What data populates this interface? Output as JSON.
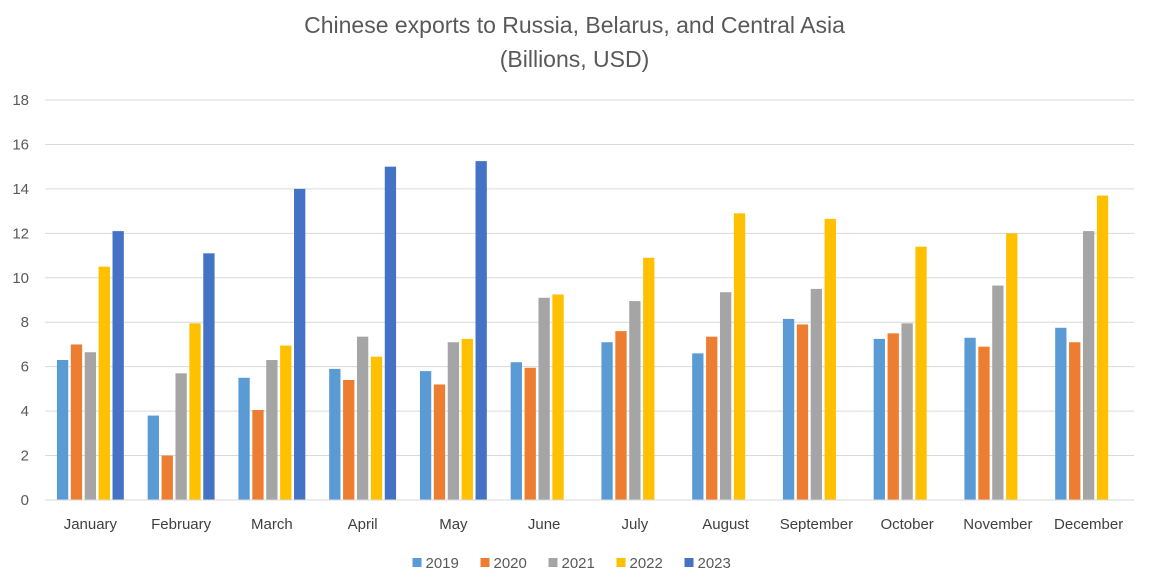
{
  "chart_data": {
    "type": "bar",
    "title": "Chinese exports to Russia, Belarus, and Central Asia",
    "subtitle": "(Billions, USD)",
    "xlabel": "",
    "ylabel": "",
    "ylim": [
      0,
      18
    ],
    "yticks": [
      0,
      2,
      4,
      6,
      8,
      10,
      12,
      14,
      16,
      18
    ],
    "grid": true,
    "legend_position": "bottom",
    "categories": [
      "January",
      "February",
      "March",
      "April",
      "May",
      "June",
      "July",
      "August",
      "September",
      "October",
      "November",
      "December"
    ],
    "series": [
      {
        "name": "2019",
        "color": "#5B9BD5",
        "values": [
          6.3,
          3.8,
          5.5,
          5.9,
          5.8,
          6.2,
          7.1,
          6.6,
          8.15,
          7.25,
          7.3,
          7.75
        ]
      },
      {
        "name": "2020",
        "color": "#ED7D31",
        "values": [
          7.0,
          2.0,
          4.05,
          5.4,
          5.2,
          5.95,
          7.6,
          7.35,
          7.9,
          7.5,
          6.9,
          7.1
        ]
      },
      {
        "name": "2021",
        "color": "#A5A5A5",
        "values": [
          6.65,
          5.7,
          6.3,
          7.35,
          7.1,
          9.1,
          8.95,
          9.35,
          9.5,
          7.95,
          9.65,
          12.1
        ]
      },
      {
        "name": "2022",
        "color": "#FFC000",
        "values": [
          10.5,
          7.95,
          6.95,
          6.45,
          7.25,
          9.25,
          10.9,
          12.9,
          12.65,
          11.4,
          12.0,
          13.7
        ]
      },
      {
        "name": "2023",
        "color": "#4472C4",
        "values": [
          12.1,
          11.1,
          14.0,
          15.0,
          15.25,
          null,
          null,
          null,
          null,
          null,
          null,
          null
        ]
      }
    ]
  }
}
